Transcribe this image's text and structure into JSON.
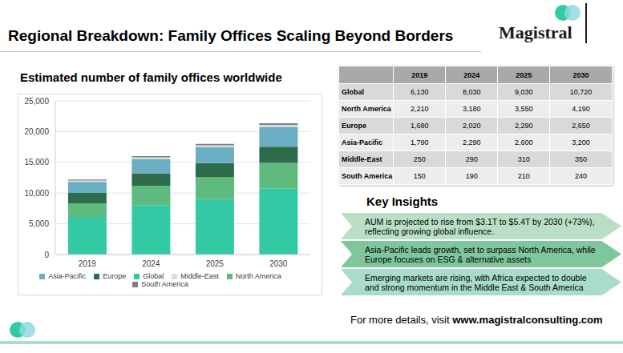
{
  "title": "Regional Breakdown: Family Offices Scaling Beyond Borders",
  "logo": "Magistral",
  "chart_data": {
    "type": "bar",
    "title": "Estimated number of family offices worldwide",
    "categories": [
      "2019",
      "2024",
      "2025",
      "2030"
    ],
    "stacked": true,
    "grid": true,
    "legend": "bottom",
    "ylim": [
      0,
      25000
    ],
    "yticks": [
      0,
      {
        "value": 5000,
        "label": "5,000"
      },
      {
        "value": 10000,
        "label": "10,000"
      },
      {
        "value": 15000,
        "label": "15,000"
      },
      {
        "value": 20000,
        "label": "20,000"
      },
      {
        "value": 25000,
        "label": "25,000"
      }
    ],
    "series": [
      {
        "name": "Global",
        "color": "#33c9a5",
        "values": [
          6130,
          8030,
          9030,
          10720
        ]
      },
      {
        "name": "North America",
        "color": "#5fba7d",
        "values": [
          2210,
          3180,
          3550,
          4190
        ]
      },
      {
        "name": "Europe",
        "color": "#2e6b4a",
        "values": [
          1680,
          2020,
          2290,
          2650
        ]
      },
      {
        "name": "Asia-Pacific",
        "color": "#6aaec4",
        "values": [
          1790,
          2290,
          2600,
          3200
        ]
      },
      {
        "name": "Middle-East",
        "color": "#dcdcdc",
        "values": [
          250,
          290,
          310,
          350
        ]
      },
      {
        "name": "South America",
        "color": "#7f7f7f",
        "values": [
          150,
          190,
          210,
          240
        ]
      }
    ]
  },
  "table": {
    "columns": [
      "2019",
      "2024",
      "2025",
      "2030"
    ],
    "rows": [
      {
        "label": "Global",
        "values": [
          "6,130",
          "8,030",
          "9,030",
          "10,720"
        ]
      },
      {
        "label": "North America",
        "values": [
          "2,210",
          "3,180",
          "3,550",
          "4,190"
        ]
      },
      {
        "label": "Europe",
        "values": [
          "1,680",
          "2,020",
          "2,290",
          "2,650"
        ]
      },
      {
        "label": "Asia-Pacific",
        "values": [
          "1,790",
          "2,290",
          "2,600",
          "3,200"
        ]
      },
      {
        "label": "Middle-East",
        "values": [
          "250",
          "290",
          "310",
          "350"
        ]
      },
      {
        "label": "South America",
        "values": [
          "150",
          "190",
          "210",
          "240"
        ]
      }
    ]
  },
  "key_insights": {
    "title": "Key Insights",
    "items": [
      "AUM is projected to rise from $3.1T to $5.4T by 2030 (+73%), reflecting growing global influence.",
      "Asia-Pacific leads growth, set to surpass North America, while Europe focuses on ESG & alternative assets",
      "Emerging markets are rising, with Africa expected to double and strong momentum in the Middle East & South America"
    ]
  },
  "footer": {
    "text": "For more details, visit",
    "link": "www.magistralconsulting.com"
  }
}
